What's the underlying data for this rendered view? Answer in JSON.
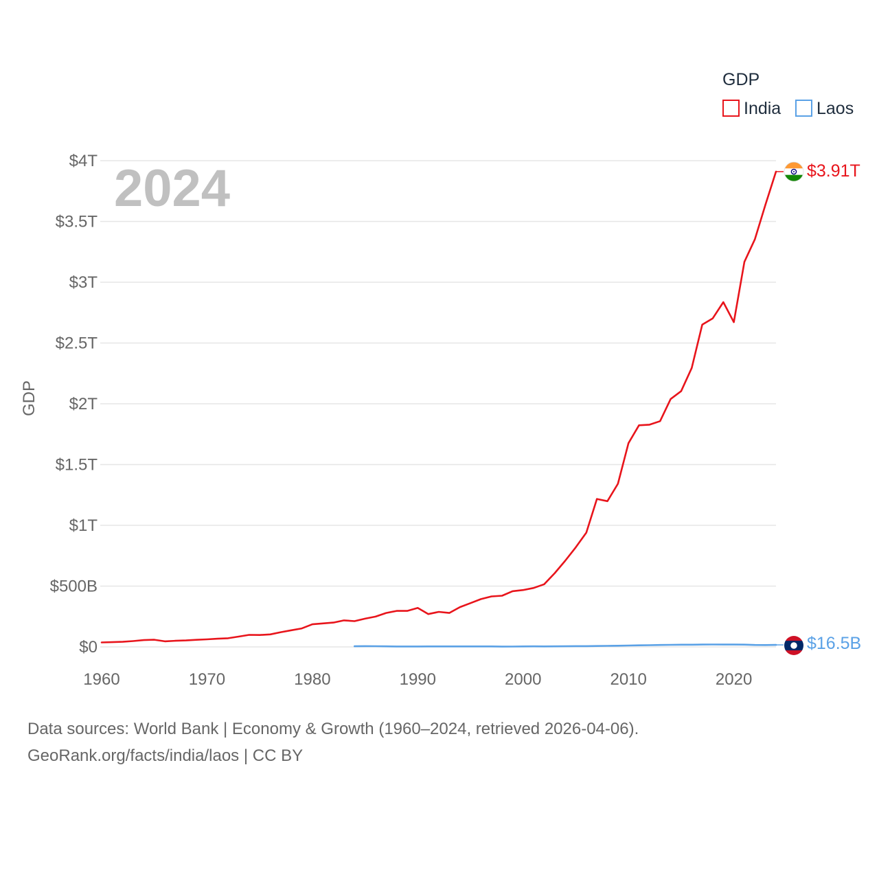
{
  "chart_data": {
    "type": "line",
    "title": "",
    "ylabel": "GDP",
    "xlabel": "",
    "year_label": "2024",
    "legend_title": "GDP",
    "legend_position": "top-right",
    "xlim": [
      1960,
      2024
    ],
    "ylim": [
      0,
      4000
    ],
    "value_unit": "billions USD",
    "x_ticks": [
      {
        "value": 1960,
        "label": "1960"
      },
      {
        "value": 1970,
        "label": "1970"
      },
      {
        "value": 1980,
        "label": "1980"
      },
      {
        "value": 1990,
        "label": "1990"
      },
      {
        "value": 2000,
        "label": "2000"
      },
      {
        "value": 2010,
        "label": "2010"
      },
      {
        "value": 2020,
        "label": "2020"
      }
    ],
    "y_ticks": [
      {
        "value": 0,
        "label": "$0"
      },
      {
        "value": 500,
        "label": "$500B"
      },
      {
        "value": 1000,
        "label": "$1T"
      },
      {
        "value": 1500,
        "label": "$1.5T"
      },
      {
        "value": 2000,
        "label": "$2T"
      },
      {
        "value": 2500,
        "label": "$2.5T"
      },
      {
        "value": 3000,
        "label": "$3T"
      },
      {
        "value": 3500,
        "label": "$3.5T"
      },
      {
        "value": 4000,
        "label": "$4T"
      }
    ],
    "series": [
      {
        "name": "India",
        "color": "#e8141b",
        "flag": "india-flag",
        "end_label": "$3.91T",
        "x": [
          1960,
          1961,
          1962,
          1963,
          1964,
          1965,
          1966,
          1967,
          1968,
          1969,
          1970,
          1971,
          1972,
          1973,
          1974,
          1975,
          1976,
          1977,
          1978,
          1979,
          1980,
          1981,
          1982,
          1983,
          1984,
          1985,
          1986,
          1987,
          1988,
          1989,
          1990,
          1991,
          1992,
          1993,
          1994,
          1995,
          1996,
          1997,
          1998,
          1999,
          2000,
          2001,
          2002,
          2003,
          2004,
          2005,
          2006,
          2007,
          2008,
          2009,
          2010,
          2011,
          2012,
          2013,
          2014,
          2015,
          2016,
          2017,
          2018,
          2019,
          2020,
          2021,
          2022,
          2023,
          2024
        ],
        "values": [
          37,
          39,
          42,
          48,
          56,
          59,
          46,
          50,
          53,
          58,
          62,
          67,
          71,
          85,
          99,
          98,
          103,
          121,
          137,
          152,
          186,
          193,
          200,
          218,
          212,
          232,
          249,
          279,
          296,
          296,
          321,
          270,
          288,
          279,
          327,
          360,
          393,
          415,
          421,
          458,
          468,
          485,
          515,
          607,
          709,
          820,
          940,
          1217,
          1199,
          1342,
          1676,
          1823,
          1828,
          1857,
          2039,
          2104,
          2295,
          2651,
          2703,
          2836,
          2672,
          3168,
          3354,
          3639,
          3910
        ]
      },
      {
        "name": "Laos",
        "color": "#5aa1e6",
        "flag": "laos-flag",
        "end_label": "$16.5B",
        "x": [
          1984,
          1985,
          1986,
          1987,
          1988,
          1989,
          1990,
          1991,
          1992,
          1993,
          1994,
          1995,
          1996,
          1997,
          1998,
          1999,
          2000,
          2001,
          2002,
          2003,
          2004,
          2005,
          2006,
          2007,
          2008,
          2009,
          2010,
          2011,
          2012,
          2013,
          2014,
          2015,
          2016,
          2017,
          2018,
          2019,
          2020,
          2021,
          2022,
          2023,
          2024
        ],
        "values": [
          5.0,
          6.4,
          5.8,
          4.5,
          3.4,
          3.5,
          3.6,
          3.8,
          3.8,
          3.9,
          4.0,
          4.0,
          4.2,
          3.8,
          2.4,
          3.1,
          4.1,
          4.3,
          4.2,
          4.6,
          5.1,
          6.1,
          6.4,
          7.5,
          8.6,
          9.4,
          11.1,
          13.0,
          14.4,
          15.9,
          17.1,
          17.8,
          18.2,
          19.1,
          19.5,
          19.1,
          19.0,
          18.8,
          15.7,
          15.2,
          16.5
        ]
      }
    ]
  },
  "source_line_1": "Data sources: World Bank | Economy & Growth (1960–2024, retrieved 2026-04-06).",
  "source_line_2": "GeoRank.org/facts/india/laos | CC BY"
}
